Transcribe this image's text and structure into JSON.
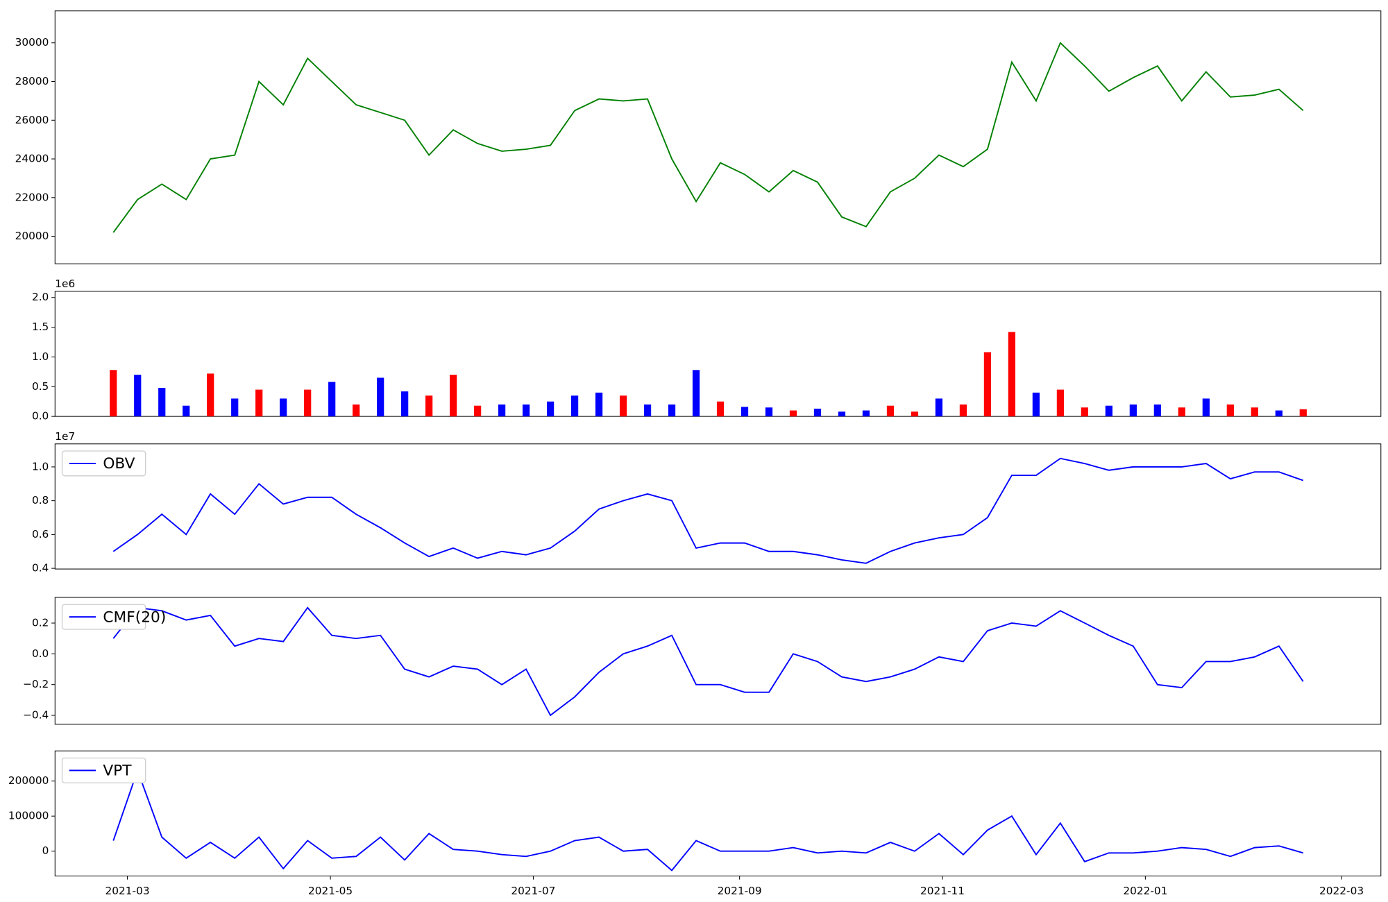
{
  "chart_data": [
    {
      "type": "line",
      "xlim": [
        2021.102,
        2022.194
      ],
      "ylim": [
        18580,
        31650
      ],
      "yticks": [
        20000,
        22000,
        24000,
        26000,
        28000,
        30000
      ],
      "x": [
        2021.15,
        2021.17,
        2021.19,
        2021.21,
        2021.23,
        2021.25,
        2021.27,
        2021.29,
        2021.31,
        2021.33,
        2021.35,
        2021.37,
        2021.39,
        2021.41,
        2021.43,
        2021.45,
        2021.47,
        2021.49,
        2021.51,
        2021.53,
        2021.55,
        2021.57,
        2021.59,
        2021.61,
        2021.63,
        2021.65,
        2021.67,
        2021.69,
        2021.71,
        2021.73,
        2021.75,
        2021.77,
        2021.79,
        2021.81,
        2021.83,
        2021.85,
        2021.87,
        2021.89,
        2021.91,
        2021.93,
        2021.95,
        2021.97,
        2021.99,
        2022.01,
        2022.03,
        2022.05,
        2022.07,
        2022.09,
        2022.11,
        2022.13
      ],
      "series": [
        {
          "color": "#008000",
          "values": [
            20200,
            21900,
            22700,
            21900,
            24000,
            24200,
            28000,
            26800,
            29200,
            28000,
            26800,
            26400,
            26000,
            24200,
            25500,
            24800,
            24400,
            24500,
            24700,
            26500,
            27100,
            27000,
            27100,
            24000,
            21800,
            23800,
            23200,
            22300,
            23400,
            22800,
            21000,
            20500,
            22300,
            23000,
            24200,
            23600,
            24500,
            29000,
            27000,
            30000,
            28800,
            27500,
            28200,
            28800,
            27000,
            28500,
            27200,
            27300,
            27600,
            26500
          ]
        }
      ]
    },
    {
      "type": "bar",
      "xlim": [
        2021.102,
        2022.194
      ],
      "ylim": [
        0,
        2104000
      ],
      "offset_label": "1e6",
      "yticks": [
        {
          "value": 0,
          "label": "0.0"
        },
        {
          "value": 500000,
          "label": "0.5"
        },
        {
          "value": 1000000,
          "label": "1.0"
        },
        {
          "value": 1500000,
          "label": "1.5"
        },
        {
          "value": 2000000,
          "label": "2.0"
        }
      ],
      "x": [
        2021.15,
        2021.17,
        2021.19,
        2021.21,
        2021.23,
        2021.25,
        2021.27,
        2021.29,
        2021.31,
        2021.33,
        2021.35,
        2021.37,
        2021.39,
        2021.41,
        2021.43,
        2021.45,
        2021.47,
        2021.49,
        2021.51,
        2021.53,
        2021.55,
        2021.57,
        2021.59,
        2021.61,
        2021.63,
        2021.65,
        2021.67,
        2021.69,
        2021.71,
        2021.73,
        2021.75,
        2021.77,
        2021.79,
        2021.81,
        2021.83,
        2021.85,
        2021.87,
        2021.89,
        2021.91,
        2021.93,
        2021.95,
        2021.97,
        2021.99,
        2022.01,
        2022.03,
        2022.05,
        2022.07,
        2022.09,
        2022.11,
        2022.13
      ],
      "values": [
        780000,
        700000,
        480000,
        180000,
        720000,
        300000,
        450000,
        300000,
        450000,
        580000,
        200000,
        650000,
        420000,
        350000,
        700000,
        180000,
        200000,
        200000,
        250000,
        350000,
        400000,
        350000,
        200000,
        200000,
        780000,
        250000,
        160000,
        150000,
        100000,
        130000,
        80000,
        100000,
        180000,
        80000,
        300000,
        200000,
        1080000,
        1420000,
        400000,
        450000,
        150000,
        180000,
        200000,
        200000,
        150000,
        300000,
        200000,
        150000,
        100000,
        120000
      ],
      "colors": [
        "red",
        "blue",
        "blue",
        "blue",
        "red",
        "blue",
        "red",
        "blue",
        "red",
        "blue",
        "red",
        "blue",
        "blue",
        "red",
        "red",
        "red",
        "blue",
        "blue",
        "blue",
        "blue",
        "blue",
        "red",
        "blue",
        "blue",
        "blue",
        "red",
        "blue",
        "blue",
        "red",
        "blue",
        "blue",
        "blue",
        "red",
        "red",
        "blue",
        "red",
        "red",
        "red",
        "blue",
        "red",
        "red",
        "blue",
        "blue",
        "blue",
        "red",
        "blue",
        "red",
        "red",
        "blue",
        "red"
      ]
    },
    {
      "type": "line",
      "xlim": [
        2021.102,
        2022.194
      ],
      "ylim": [
        3960000,
        11360000
      ],
      "offset_label": "1e7",
      "legend": "upper left",
      "yticks": [
        {
          "value": 4000000,
          "label": "0.4"
        },
        {
          "value": 6000000,
          "label": "0.6"
        },
        {
          "value": 8000000,
          "label": "0.8"
        },
        {
          "value": 10000000,
          "label": "1.0"
        }
      ],
      "x": [
        2021.15,
        2021.17,
        2021.19,
        2021.21,
        2021.23,
        2021.25,
        2021.27,
        2021.29,
        2021.31,
        2021.33,
        2021.35,
        2021.37,
        2021.39,
        2021.41,
        2021.43,
        2021.45,
        2021.47,
        2021.49,
        2021.51,
        2021.53,
        2021.55,
        2021.57,
        2021.59,
        2021.61,
        2021.63,
        2021.65,
        2021.67,
        2021.69,
        2021.71,
        2021.73,
        2021.75,
        2021.77,
        2021.79,
        2021.81,
        2021.83,
        2021.85,
        2021.87,
        2021.89,
        2021.91,
        2021.93,
        2021.95,
        2021.97,
        2021.99,
        2022.01,
        2022.03,
        2022.05,
        2022.07,
        2022.09,
        2022.11,
        2022.13
      ],
      "series": [
        {
          "name": "OBV",
          "color": "#0000ff",
          "values": [
            5000000,
            6000000,
            7200000,
            6000000,
            8400000,
            7200000,
            9000000,
            7800000,
            8200000,
            8200000,
            7200000,
            6400000,
            5500000,
            4700000,
            5200000,
            4600000,
            5000000,
            4800000,
            5200000,
            6200000,
            7500000,
            8000000,
            8400000,
            8000000,
            5200000,
            5500000,
            5500000,
            5000000,
            5000000,
            4800000,
            4500000,
            4300000,
            5000000,
            5500000,
            5800000,
            6000000,
            7000000,
            9500000,
            9500000,
            10500000,
            10200000,
            9800000,
            10000000,
            10000000,
            10000000,
            10200000,
            9300000,
            9700000,
            9700000,
            9200000
          ]
        }
      ]
    },
    {
      "type": "line",
      "xlim": [
        2021.102,
        2022.194
      ],
      "ylim": [
        -0.458,
        0.367
      ],
      "legend": "upper left",
      "yticks": [
        {
          "value": -0.4,
          "label": "−0.4"
        },
        {
          "value": -0.2,
          "label": "−0.2"
        },
        {
          "value": 0,
          "label": "0.0"
        },
        0.2
      ],
      "x": [
        2021.15,
        2021.17,
        2021.19,
        2021.21,
        2021.23,
        2021.25,
        2021.27,
        2021.29,
        2021.31,
        2021.33,
        2021.35,
        2021.37,
        2021.39,
        2021.41,
        2021.43,
        2021.45,
        2021.47,
        2021.49,
        2021.51,
        2021.53,
        2021.55,
        2021.57,
        2021.59,
        2021.61,
        2021.63,
        2021.65,
        2021.67,
        2021.69,
        2021.71,
        2021.73,
        2021.75,
        2021.77,
        2021.79,
        2021.81,
        2021.83,
        2021.85,
        2021.87,
        2021.89,
        2021.91,
        2021.93,
        2021.95,
        2021.97,
        2021.99,
        2022.01,
        2022.03,
        2022.05,
        2022.07,
        2022.09,
        2022.11,
        2022.13
      ],
      "series": [
        {
          "name": "CMF(20)",
          "color": "#0000ff",
          "values": [
            0.1,
            0.3,
            0.28,
            0.22,
            0.25,
            0.05,
            0.1,
            0.08,
            0.3,
            0.12,
            0.1,
            0.12,
            -0.1,
            -0.15,
            -0.08,
            -0.1,
            -0.2,
            -0.1,
            -0.4,
            -0.28,
            -0.12,
            0.0,
            0.05,
            0.12,
            -0.2,
            -0.2,
            -0.25,
            -0.25,
            0.0,
            -0.05,
            -0.15,
            -0.18,
            -0.15,
            -0.1,
            -0.02,
            -0.05,
            0.15,
            0.2,
            0.18,
            0.28,
            0.2,
            0.12,
            0.05,
            -0.2,
            -0.22,
            -0.05,
            -0.05,
            -0.02,
            0.05,
            -0.18
          ]
        }
      ]
    },
    {
      "type": "line",
      "xlim": [
        2021.102,
        2022.194
      ],
      "ylim": [
        -70900,
        286000
      ],
      "legend": "upper left",
      "yticks": [
        0,
        100000,
        200000
      ],
      "xticks": [
        {
          "value": 2021.1616,
          "label": "2021-03"
        },
        {
          "value": 2021.3288,
          "label": "2021-05"
        },
        {
          "value": 2021.4959,
          "label": "2021-07"
        },
        {
          "value": 2021.6658,
          "label": "2021-09"
        },
        {
          "value": 2021.8329,
          "label": "2021-11"
        },
        {
          "value": 2022.0,
          "label": "2022-01"
        },
        {
          "value": 2022.1616,
          "label": "2022-03"
        }
      ],
      "x": [
        2021.15,
        2021.17,
        2021.19,
        2021.21,
        2021.23,
        2021.25,
        2021.27,
        2021.29,
        2021.31,
        2021.33,
        2021.35,
        2021.37,
        2021.39,
        2021.41,
        2021.43,
        2021.45,
        2021.47,
        2021.49,
        2021.51,
        2021.53,
        2021.55,
        2021.57,
        2021.59,
        2021.61,
        2021.63,
        2021.65,
        2021.67,
        2021.69,
        2021.71,
        2021.73,
        2021.75,
        2021.77,
        2021.79,
        2021.81,
        2021.83,
        2021.85,
        2021.87,
        2021.89,
        2021.91,
        2021.93,
        2021.95,
        2021.97,
        2021.99,
        2022.01,
        2022.03,
        2022.05,
        2022.07,
        2022.09,
        2022.11,
        2022.13
      ],
      "series": [
        {
          "name": "VPT",
          "color": "#0000ff",
          "values": [
            30000,
            230000,
            40000,
            -20000,
            25000,
            -20000,
            40000,
            -50000,
            30000,
            -20000,
            -15000,
            40000,
            -25000,
            50000,
            5000,
            0,
            -10000,
            -15000,
            0,
            30000,
            40000,
            0,
            5000,
            -55000,
            30000,
            0,
            0,
            0,
            10000,
            -5000,
            0,
            -5000,
            25000,
            0,
            50000,
            -10000,
            60000,
            100000,
            -10000,
            80000,
            -30000,
            -5000,
            -5000,
            0,
            10000,
            5000,
            -15000,
            10000,
            15000,
            -5000
          ]
        }
      ]
    }
  ]
}
